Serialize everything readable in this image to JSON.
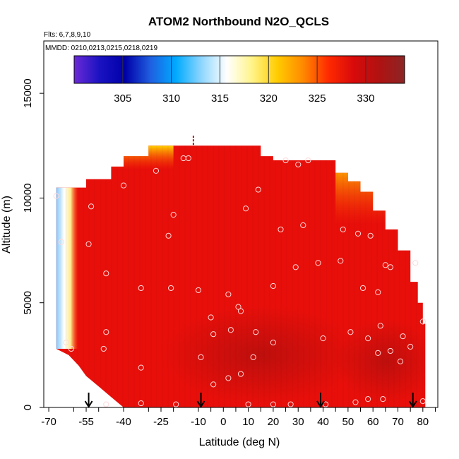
{
  "chart_data": {
    "type": "heatmap",
    "title": "ATOM2 Northbound N2O_QCLS",
    "flights_note": "Flts: 6,7,8,9,10",
    "dates_note": "MMDD: 0210,0213,0215,0218,0219",
    "xlabel": "Latitude (deg N)",
    "ylabel": "Altitude (m)",
    "xlim": [
      -72,
      86
    ],
    "ylim": [
      0,
      17500
    ],
    "x_ticks": [
      -70,
      -60,
      -55,
      -50,
      -40,
      -30,
      -25,
      -20,
      -10,
      -5,
      0,
      5,
      10,
      15,
      20,
      25,
      30,
      35,
      40,
      45,
      50,
      55,
      60,
      65,
      70,
      75,
      80,
      85
    ],
    "x_tick_labels": [
      "-70",
      "-55",
      "-40",
      "-25",
      "-10",
      "0",
      "10",
      "20",
      "30",
      "40",
      "50",
      "60",
      "70",
      "80"
    ],
    "x_tick_label_values": [
      -70,
      -55,
      -40,
      -25,
      -10,
      0,
      10,
      20,
      30,
      40,
      50,
      60,
      70,
      80
    ],
    "y_tick_labels": [
      "0",
      "5000",
      "10000",
      "15000"
    ],
    "y_tick_label_values": [
      0,
      5000,
      10000,
      15000
    ],
    "colorbar": {
      "range": [
        300,
        334
      ],
      "tick_labels": [
        "305",
        "310",
        "315",
        "320",
        "325",
        "330"
      ],
      "tick_values": [
        305,
        310,
        315,
        320,
        325,
        330
      ],
      "stops": [
        "#6b2bd6",
        "#1a12c2",
        "#0000a8",
        "#1f5fe0",
        "#00aaff",
        "#8ed6ff",
        "#ffffff",
        "#fff48a",
        "#ffcc00",
        "#ff8a00",
        "#ff2a00",
        "#d80a0a",
        "#b01212",
        "#8b2525"
      ]
    },
    "top_profile": [
      [
        -67,
        10500
      ],
      [
        -55,
        10500
      ],
      [
        -45,
        10900
      ],
      [
        -40,
        11500
      ],
      [
        -30,
        12000
      ],
      [
        -20,
        12500
      ],
      [
        15,
        12500
      ],
      [
        20,
        12000
      ],
      [
        45,
        11800
      ],
      [
        50,
        11200
      ],
      [
        55,
        10800
      ],
      [
        60,
        10300
      ],
      [
        65,
        9400
      ],
      [
        70,
        8500
      ],
      [
        75,
        7500
      ],
      [
        78,
        6000
      ],
      [
        80,
        5000
      ],
      [
        81,
        4000
      ],
      [
        81,
        0
      ]
    ],
    "bottom_profile": [
      [
        -67,
        2800
      ],
      [
        -62,
        2500
      ],
      [
        -58,
        2000
      ],
      [
        -55,
        1500
      ],
      [
        -50,
        1000
      ],
      [
        -45,
        500
      ],
      [
        -40,
        0
      ]
    ],
    "arrows_latitude": [
      -54,
      -9,
      39,
      76
    ],
    "sample_points": [
      [
        -67,
        10100
      ],
      [
        -65,
        7900
      ],
      [
        -63,
        3100
      ],
      [
        -61,
        2800
      ],
      [
        -54,
        7800
      ],
      [
        -53,
        9600
      ],
      [
        -47,
        6400
      ],
      [
        -47,
        3600
      ],
      [
        -48,
        2800
      ],
      [
        -47,
        150
      ],
      [
        -40,
        10600
      ],
      [
        -33,
        5700
      ],
      [
        -33,
        1900
      ],
      [
        -33,
        200
      ],
      [
        -27,
        11300
      ],
      [
        -22,
        8200
      ],
      [
        -21,
        5700
      ],
      [
        -20,
        9200
      ],
      [
        -19,
        150
      ],
      [
        -16,
        11900
      ],
      [
        -14,
        11900
      ],
      [
        -10,
        5600
      ],
      [
        -9,
        2400
      ],
      [
        -5,
        4300
      ],
      [
        -4,
        3500
      ],
      [
        -4,
        1100
      ],
      [
        2,
        5400
      ],
      [
        2,
        1400
      ],
      [
        3,
        3700
      ],
      [
        6,
        4800
      ],
      [
        7,
        4600
      ],
      [
        7,
        1600
      ],
      [
        9,
        9500
      ],
      [
        10,
        150
      ],
      [
        12,
        2400
      ],
      [
        13,
        3600
      ],
      [
        14,
        10400
      ],
      [
        20,
        5800
      ],
      [
        20,
        3100
      ],
      [
        20,
        150
      ],
      [
        23,
        8500
      ],
      [
        25,
        11800
      ],
      [
        27,
        150
      ],
      [
        29,
        6700
      ],
      [
        30,
        11600
      ],
      [
        32,
        8700
      ],
      [
        34,
        11800
      ],
      [
        38,
        6900
      ],
      [
        40,
        3300
      ],
      [
        41,
        150
      ],
      [
        47,
        7000
      ],
      [
        48,
        8500
      ],
      [
        51,
        3600
      ],
      [
        53,
        250
      ],
      [
        54,
        8300
      ],
      [
        56,
        5700
      ],
      [
        58,
        3300
      ],
      [
        58,
        400
      ],
      [
        59,
        8200
      ],
      [
        62,
        5500
      ],
      [
        62,
        2600
      ],
      [
        63,
        3900
      ],
      [
        64,
        400
      ],
      [
        65,
        6800
      ],
      [
        67,
        6700
      ],
      [
        67,
        2700
      ],
      [
        71,
        2200
      ],
      [
        72,
        3400
      ],
      [
        75,
        2900
      ],
      [
        77,
        6900
      ],
      [
        80,
        4100
      ],
      [
        80,
        300
      ]
    ]
  }
}
